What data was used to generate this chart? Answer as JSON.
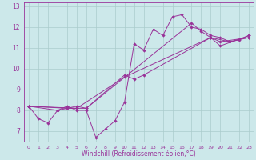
{
  "xlabel": "Windchill (Refroidissement éolien,°C)",
  "bg_color": "#cce8ea",
  "line_color": "#993399",
  "grid_color": "#aacccc",
  "spine_color": "#993399",
  "xlim": [
    -0.5,
    23.5
  ],
  "ylim": [
    6.5,
    13.2
  ],
  "xticks": [
    0,
    1,
    2,
    3,
    4,
    5,
    6,
    7,
    8,
    9,
    10,
    11,
    12,
    13,
    14,
    15,
    16,
    17,
    18,
    19,
    20,
    21,
    22,
    23
  ],
  "yticks": [
    7,
    8,
    9,
    10,
    11,
    12,
    13
  ],
  "xtick_fontsize": 4.5,
  "ytick_fontsize": 5.5,
  "xlabel_fontsize": 5.5,
  "series": [
    [
      [
        0,
        8.2
      ],
      [
        1,
        7.6
      ],
      [
        2,
        7.4
      ],
      [
        3,
        8.0
      ],
      [
        4,
        8.2
      ],
      [
        5,
        8.0
      ],
      [
        6,
        8.0
      ],
      [
        7,
        6.7
      ],
      [
        8,
        7.1
      ],
      [
        9,
        7.5
      ],
      [
        10,
        8.4
      ],
      [
        11,
        11.2
      ],
      [
        12,
        10.9
      ],
      [
        13,
        11.9
      ],
      [
        14,
        11.6
      ],
      [
        15,
        12.5
      ],
      [
        16,
        12.6
      ],
      [
        17,
        12.0
      ],
      [
        18,
        11.9
      ],
      [
        19,
        11.6
      ],
      [
        20,
        11.5
      ],
      [
        21,
        11.3
      ],
      [
        22,
        11.4
      ],
      [
        23,
        11.6
      ]
    ],
    [
      [
        0,
        8.2
      ],
      [
        4,
        8.1
      ],
      [
        5,
        8.1
      ],
      [
        6,
        8.1
      ],
      [
        17,
        12.2
      ],
      [
        18,
        11.8
      ],
      [
        19,
        11.5
      ],
      [
        20,
        11.3
      ],
      [
        23,
        11.5
      ]
    ],
    [
      [
        0,
        8.2
      ],
      [
        5,
        8.1
      ],
      [
        10,
        9.6
      ],
      [
        19,
        11.5
      ],
      [
        21,
        11.3
      ],
      [
        23,
        11.5
      ]
    ],
    [
      [
        0,
        8.2
      ],
      [
        3,
        8.0
      ],
      [
        4,
        8.1
      ],
      [
        5,
        8.2
      ],
      [
        6,
        8.1
      ],
      [
        10,
        9.7
      ],
      [
        11,
        9.5
      ],
      [
        12,
        9.7
      ],
      [
        19,
        11.5
      ],
      [
        20,
        11.1
      ],
      [
        23,
        11.6
      ]
    ]
  ]
}
